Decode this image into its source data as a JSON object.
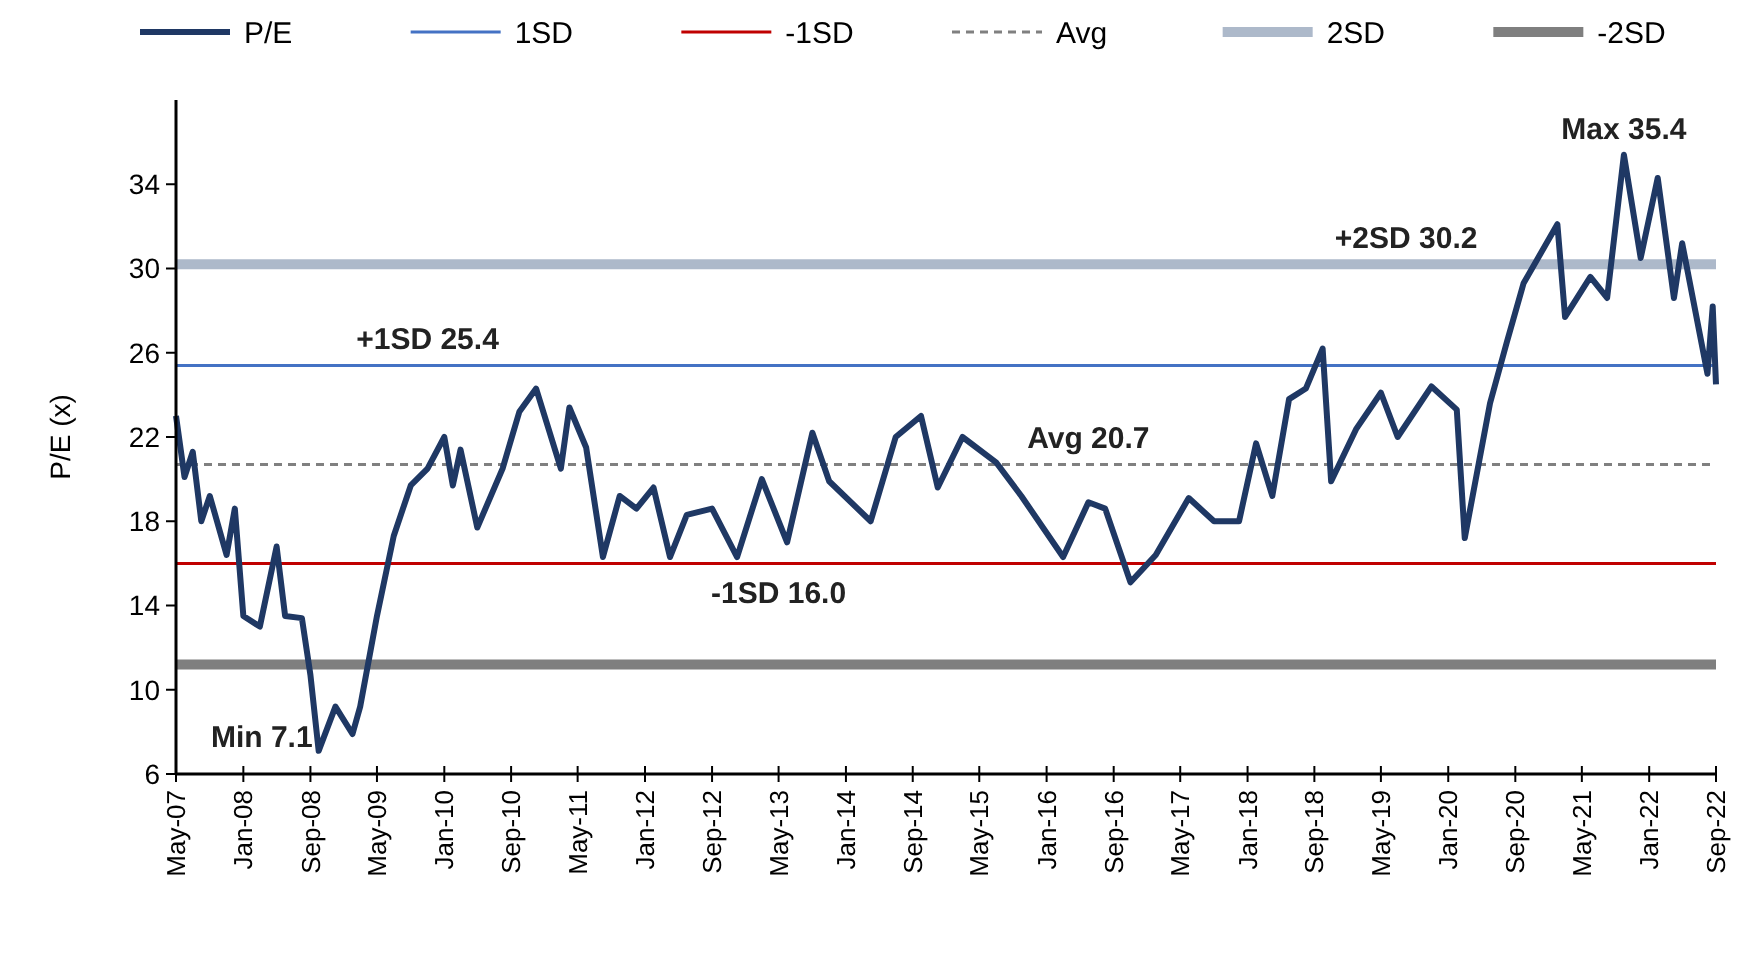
{
  "chart_data": {
    "type": "line",
    "ylabel": "P/E (x)",
    "legend": "top",
    "grid": false,
    "marker": "none",
    "xlim": [
      "2007-05",
      "2022-09"
    ],
    "ylim": [
      6,
      38
    ],
    "yticks": [
      6,
      10,
      14,
      18,
      22,
      26,
      30,
      34
    ],
    "xticks": [
      {
        "value": "2007-05",
        "label": "May-07"
      },
      {
        "value": "2008-01",
        "label": "Jan-08"
      },
      {
        "value": "2008-09",
        "label": "Sep-08"
      },
      {
        "value": "2009-05",
        "label": "May-09"
      },
      {
        "value": "2010-01",
        "label": "Jan-10"
      },
      {
        "value": "2010-09",
        "label": "Sep-10"
      },
      {
        "value": "2011-05",
        "label": "May-11"
      },
      {
        "value": "2012-01",
        "label": "Jan-12"
      },
      {
        "value": "2012-09",
        "label": "Sep-12"
      },
      {
        "value": "2013-05",
        "label": "May-13"
      },
      {
        "value": "2014-01",
        "label": "Jan-14"
      },
      {
        "value": "2014-09",
        "label": "Sep-14"
      },
      {
        "value": "2015-05",
        "label": "May-15"
      },
      {
        "value": "2016-01",
        "label": "Jan-16"
      },
      {
        "value": "2016-09",
        "label": "Sep-16"
      },
      {
        "value": "2017-05",
        "label": "May-17"
      },
      {
        "value": "2018-01",
        "label": "Jan-18"
      },
      {
        "value": "2018-09",
        "label": "Sep-18"
      },
      {
        "value": "2019-05",
        "label": "May-19"
      },
      {
        "value": "2020-01",
        "label": "Jan-20"
      },
      {
        "value": "2020-09",
        "label": "Sep-20"
      },
      {
        "value": "2021-05",
        "label": "May-21"
      },
      {
        "value": "2022-01",
        "label": "Jan-22"
      },
      {
        "value": "2022-09",
        "label": "Sep-22"
      }
    ],
    "series": [
      {
        "name": "P/E",
        "color": "#1f3864",
        "line_style": "solid",
        "x": [
          "2007-05",
          "2007-06",
          "2007-07",
          "2007-08",
          "2007-09",
          "2007-11",
          "2007-12",
          "2008-01",
          "2008-03",
          "2008-05",
          "2008-06",
          "2008-08",
          "2008-09",
          "2008-10",
          "2008-12",
          "2009-02",
          "2009-03",
          "2009-05",
          "2009-07",
          "2009-09",
          "2009-11",
          "2010-01",
          "2010-02",
          "2010-03",
          "2010-05",
          "2010-08",
          "2010-10",
          "2010-12",
          "2011-03",
          "2011-04",
          "2011-06",
          "2011-08",
          "2011-10",
          "2011-12",
          "2012-02",
          "2012-04",
          "2012-06",
          "2012-09",
          "2012-12",
          "2013-03",
          "2013-06",
          "2013-09",
          "2013-11",
          "2014-04",
          "2014-07",
          "2014-10",
          "2014-12",
          "2015-03",
          "2015-07",
          "2015-10",
          "2016-03",
          "2016-06",
          "2016-08",
          "2016-11",
          "2017-02",
          "2017-06",
          "2017-09",
          "2017-12",
          "2018-02",
          "2018-04",
          "2018-06",
          "2018-08",
          "2018-10",
          "2018-11",
          "2019-02",
          "2019-05",
          "2019-07",
          "2019-11",
          "2020-02",
          "2020-03",
          "2020-06",
          "2020-08",
          "2020-10",
          "2021-02",
          "2021-03",
          "2021-06",
          "2021-08",
          "2021-10",
          "2021-12",
          "2022-02",
          "2022-04",
          "2022-05",
          "2022-08",
          "2022-08-20",
          "2022-09"
        ],
        "values": [
          23.0,
          20.1,
          21.3,
          18.0,
          19.2,
          16.4,
          18.6,
          13.5,
          13.0,
          16.8,
          13.5,
          13.4,
          10.7,
          7.1,
          9.2,
          7.9,
          9.2,
          13.5,
          17.3,
          19.7,
          20.5,
          22.0,
          19.7,
          21.4,
          17.7,
          20.5,
          23.2,
          24.3,
          20.5,
          23.4,
          21.5,
          16.3,
          19.2,
          18.6,
          19.6,
          16.3,
          18.3,
          18.6,
          16.3,
          20.0,
          17.0,
          22.2,
          19.9,
          18.0,
          22.0,
          23.0,
          19.6,
          22.0,
          20.8,
          19.2,
          16.3,
          18.9,
          18.6,
          15.1,
          16.4,
          19.1,
          18.0,
          18.0,
          21.7,
          19.2,
          23.8,
          24.3,
          26.2,
          19.9,
          22.4,
          24.1,
          22.0,
          24.4,
          23.3,
          17.2,
          23.6,
          26.5,
          29.3,
          32.1,
          27.7,
          29.6,
          28.6,
          35.4,
          30.5,
          34.3,
          28.6,
          31.2,
          25.0,
          28.2,
          24.5
        ]
      },
      {
        "name": "1SD",
        "color": "#4472c4",
        "line_style": "solid",
        "x": [
          "2007-05",
          "2022-09"
        ],
        "values": [
          25.4,
          25.4
        ]
      },
      {
        "name": "-1SD",
        "color": "#c00000",
        "line_style": "solid",
        "x": [
          "2007-05",
          "2022-09"
        ],
        "values": [
          16.0,
          16.0
        ]
      },
      {
        "name": "Avg",
        "color": "#808080",
        "line_style": "dashed",
        "x": [
          "2007-05",
          "2022-09"
        ],
        "values": [
          20.7,
          20.7
        ]
      },
      {
        "name": "2SD",
        "color": "#adb9ca",
        "line_style": "solid",
        "x": [
          "2007-05",
          "2022-09"
        ],
        "values": [
          30.2,
          30.2
        ]
      },
      {
        "name": "-2SD",
        "color": "#7f7f7f",
        "line_style": "solid",
        "x": [
          "2007-05",
          "2022-09"
        ],
        "values": [
          11.2,
          11.2
        ]
      }
    ],
    "annotations": [
      {
        "text": "Max 35.4",
        "x": "2021-10",
        "y": 35.4
      },
      {
        "text": "+2SD 30.2",
        "x": "2019-08",
        "y": 30.2
      },
      {
        "text": "+1SD 25.4",
        "x": "2009-11",
        "y": 25.4
      },
      {
        "text": "Avg 20.7",
        "x": "2016-06",
        "y": 20.7
      },
      {
        "text": "-1SD 16.0",
        "x": "2013-05",
        "y": 16.0
      },
      {
        "text": "Min 7.1",
        "x": "2008-10",
        "y": 7.1
      }
    ]
  }
}
